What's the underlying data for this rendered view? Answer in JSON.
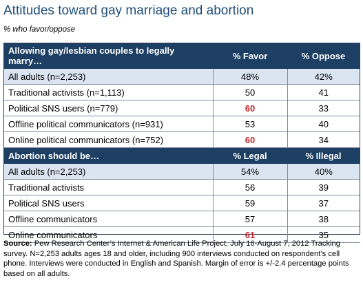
{
  "title": "Attitudes toward gay marriage and abortion",
  "subtitle": "% who favor/oppose",
  "marriage": {
    "header": {
      "label": "Allowing gay/lesbian couples to legally marry…",
      "col1": "% Favor",
      "col2": "% Oppose"
    },
    "rows": [
      {
        "label": "All adults (n=2,253)",
        "v1": "48%",
        "v2": "42%",
        "highlight": false
      },
      {
        "label": "Traditional activists (n=1,113)",
        "v1": "50",
        "v2": "41",
        "highlight": false
      },
      {
        "label": "Political SNS users (n=779)",
        "v1": "60",
        "v2": "33",
        "highlight": true
      },
      {
        "label": "Offline political communicators (n=931)",
        "v1": "53",
        "v2": "40",
        "highlight": false
      },
      {
        "label": "Online political communicators (n=752)",
        "v1": "60",
        "v2": "34",
        "highlight": true
      }
    ]
  },
  "abortion": {
    "header": {
      "label": "Abortion should be…",
      "col1": "% Legal",
      "col2": "% Illegal"
    },
    "rows": [
      {
        "label": "All adults (n=2,253)",
        "v1": "54%",
        "v2": "40%",
        "highlight": false
      },
      {
        "label": "Traditional activists",
        "v1": "56",
        "v2": "39",
        "highlight": false
      },
      {
        "label": "Political SNS users",
        "v1": "59",
        "v2": "37",
        "highlight": false
      },
      {
        "label": "Offline communicators",
        "v1": "57",
        "v2": "38",
        "highlight": false
      },
      {
        "label": "Online communicators",
        "v1": "61",
        "v2": "35",
        "highlight": true
      }
    ]
  },
  "source": {
    "label": "Source:",
    "text": "Pew Research Center’s Internet & American Life Project, July 16-August 7, 2012 Tracking survey. N=2,253 adults ages 18 and older, including 900 interviews conducted on respondent’s cell phone.  Interviews were conducted in English and Spanish. Margin of error is +/-2.4 percentage points based on all adults."
  },
  "colors": {
    "title": "#1f4e79",
    "header_bg": "#1c3f63",
    "lead_row_bg": "#dbe5f1",
    "highlight": "#c0272d"
  }
}
